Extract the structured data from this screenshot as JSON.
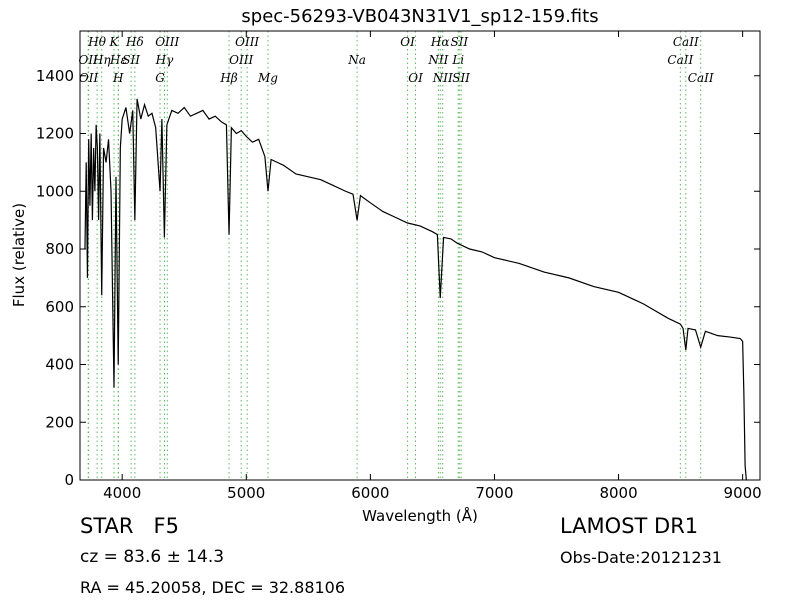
{
  "chart_data": {
    "type": "line",
    "title": "spec-56293-VB043N31V1_sp12-159.fits",
    "xlabel": "Wavelength (Å)",
    "ylabel": "Flux (relative)",
    "color": "#000000",
    "line_color": "#5cb85c",
    "xlim": [
      3660,
      9140
    ],
    "ylim": [
      0,
      1555
    ],
    "xticks": [
      4000,
      5000,
      6000,
      7000,
      8000,
      9000
    ],
    "yticks": [
      0,
      200,
      400,
      600,
      800,
      1000,
      1200,
      1400
    ],
    "x": [
      3700,
      3710,
      3720,
      3730,
      3740,
      3750,
      3760,
      3770,
      3780,
      3790,
      3800,
      3810,
      3820,
      3835,
      3850,
      3870,
      3890,
      3910,
      3934,
      3950,
      3968,
      3985,
      4000,
      4030,
      4060,
      4085,
      4102,
      4120,
      4150,
      4180,
      4210,
      4240,
      4270,
      4305,
      4320,
      4340,
      4360,
      4400,
      4450,
      4500,
      4550,
      4600,
      4650,
      4700,
      4750,
      4800,
      4840,
      4861,
      4880,
      4920,
      4960,
      5000,
      5050,
      5100,
      5150,
      5175,
      5200,
      5250,
      5300,
      5400,
      5500,
      5600,
      5700,
      5800,
      5860,
      5893,
      5920,
      6000,
      6100,
      6200,
      6300,
      6400,
      6500,
      6540,
      6563,
      6590,
      6650,
      6700,
      6800,
      6900,
      7000,
      7200,
      7400,
      7600,
      7800,
      8000,
      8200,
      8400,
      8498,
      8520,
      8542,
      8560,
      8620,
      8662,
      8700,
      8800,
      8900,
      8980,
      9000,
      9010,
      9020,
      9030
    ],
    "values": [
      800,
      1100,
      700,
      1180,
      950,
      1200,
      900,
      1150,
      1000,
      1230,
      1150,
      900,
      1200,
      640,
      1150,
      1100,
      1180,
      1000,
      320,
      1050,
      400,
      1150,
      1250,
      1290,
      1200,
      1280,
      900,
      1320,
      1250,
      1300,
      1260,
      1270,
      1220,
      1000,
      1250,
      840,
      1230,
      1280,
      1270,
      1290,
      1260,
      1270,
      1280,
      1250,
      1260,
      1240,
      1230,
      850,
      1220,
      1200,
      1210,
      1190,
      1170,
      1180,
      1120,
      1000,
      1110,
      1100,
      1090,
      1060,
      1050,
      1040,
      1020,
      1000,
      990,
      900,
      985,
      960,
      930,
      910,
      890,
      880,
      860,
      850,
      630,
      840,
      835,
      820,
      800,
      790,
      770,
      750,
      720,
      700,
      670,
      650,
      610,
      560,
      540,
      525,
      450,
      525,
      520,
      460,
      515,
      500,
      495,
      490,
      480,
      300,
      50,
      0
    ],
    "lines": [
      {
        "label": "OII",
        "x": 3726
      },
      {
        "label": "OII",
        "x": 3729
      },
      {
        "label": "Hθ",
        "x": 3798
      },
      {
        "label": "Hη",
        "x": 3835
      },
      {
        "label": "K",
        "x": 3934
      },
      {
        "label": "Hε",
        "x": 3970
      },
      {
        "label": "H",
        "x": 3968
      },
      {
        "label": "SII",
        "x": 4072
      },
      {
        "label": "Hδ",
        "x": 4102
      },
      {
        "label": "G",
        "x": 4305
      },
      {
        "label": "Hγ",
        "x": 4341
      },
      {
        "label": "OIII",
        "x": 4363
      },
      {
        "label": "Hβ",
        "x": 4861
      },
      {
        "label": "OIII",
        "x": 4959
      },
      {
        "label": "OIII",
        "x": 5007
      },
      {
        "label": "Mg",
        "x": 5175
      },
      {
        "label": "Na",
        "x": 5893
      },
      {
        "label": "OI",
        "x": 6300
      },
      {
        "label": "OI",
        "x": 6364
      },
      {
        "label": "NII",
        "x": 6548
      },
      {
        "label": "Hα",
        "x": 6563
      },
      {
        "label": "NII",
        "x": 6583
      },
      {
        "label": "Li",
        "x": 6708
      },
      {
        "label": "SII",
        "x": 6717
      },
      {
        "label": "SII",
        "x": 6731
      },
      {
        "label": "CaII",
        "x": 8498
      },
      {
        "label": "CaII",
        "x": 8542
      },
      {
        "label": "CaII",
        "x": 8662
      }
    ]
  },
  "footer": {
    "object": "STAR   F5",
    "cz": "cz = 83.6 ± 14.3",
    "coords": "RA = 45.20058, DEC = 32.88106",
    "survey": "LAMOST DR1",
    "obs_date": "Obs-Date:20121231"
  }
}
